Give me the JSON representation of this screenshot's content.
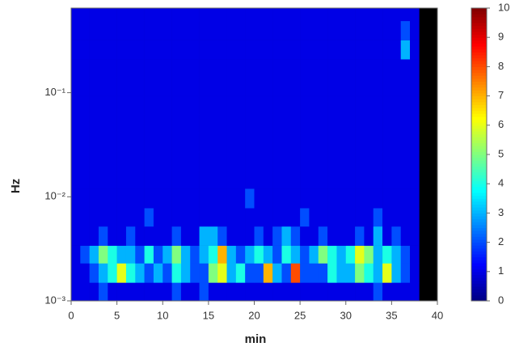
{
  "chart_data": {
    "type": "heatmap",
    "x_label": "min",
    "y_label": "Hz",
    "x_bins": [
      0,
      1,
      2,
      3,
      4,
      5,
      6,
      7,
      8,
      9,
      10,
      11,
      12,
      13,
      14,
      15,
      16,
      17,
      18,
      19,
      20,
      21,
      22,
      23,
      24,
      25,
      26,
      27,
      28,
      29,
      30,
      31,
      32,
      33,
      34,
      35,
      36,
      37,
      38
    ],
    "y_bins": [
      0.001,
      0.0015,
      0.0023,
      0.0034,
      0.0052,
      0.0078,
      0.012,
      0.018,
      0.027,
      0.041,
      0.062,
      0.093,
      0.14,
      0.21,
      0.32,
      0.49,
      0.65
    ],
    "values": [
      [
        1,
        1,
        1,
        2,
        1,
        1,
        1,
        1,
        1,
        1,
        1,
        2,
        1,
        1,
        2,
        1,
        1,
        1,
        1,
        1,
        1,
        1,
        1,
        1,
        1,
        1,
        1,
        1,
        1,
        1,
        1,
        1,
        1,
        2,
        1,
        1,
        1,
        1
      ],
      [
        1,
        1,
        2,
        3,
        4,
        6,
        4,
        3,
        2,
        3,
        2,
        4,
        3,
        2,
        2,
        5,
        6,
        3,
        4,
        2,
        2,
        7,
        3,
        2,
        8,
        2,
        2,
        2,
        4,
        3,
        3,
        5,
        4,
        3,
        6,
        3,
        2,
        1
      ],
      [
        1,
        2,
        3,
        5,
        4,
        3,
        3,
        2,
        4,
        2,
        3,
        5,
        3,
        2,
        3,
        4,
        7,
        3,
        2,
        3,
        4,
        3,
        2,
        4,
        3,
        2,
        3,
        5,
        4,
        3,
        4,
        6,
        5,
        3,
        4,
        3,
        2,
        1
      ],
      [
        1,
        1,
        1,
        2,
        1,
        1,
        2,
        1,
        1,
        1,
        1,
        2,
        1,
        1,
        3,
        3,
        2,
        1,
        1,
        1,
        2,
        1,
        2,
        3,
        2,
        1,
        1,
        2,
        1,
        1,
        1,
        2,
        1,
        3,
        1,
        2,
        1,
        1
      ],
      [
        1,
        1,
        1,
        1,
        1,
        1,
        1,
        1,
        2,
        1,
        1,
        1,
        1,
        1,
        1,
        1,
        1,
        1,
        1,
        1,
        1,
        1,
        1,
        1,
        1,
        2,
        1,
        1,
        1,
        1,
        1,
        1,
        1,
        2,
        1,
        1,
        1,
        1
      ],
      [
        1,
        1,
        1,
        1,
        1,
        1,
        1,
        1,
        1,
        1,
        1,
        1,
        1,
        1,
        1,
        1,
        1,
        1,
        1,
        2,
        1,
        1,
        1,
        1,
        1,
        1,
        1,
        1,
        1,
        1,
        1,
        1,
        1,
        1,
        1,
        1,
        1,
        1
      ],
      [
        1,
        1,
        1,
        1,
        1,
        1,
        1,
        1,
        1,
        1,
        1,
        1,
        1,
        1,
        1,
        1,
        1,
        1,
        1,
        1,
        1,
        1,
        1,
        1,
        1,
        1,
        1,
        1,
        1,
        1,
        1,
        1,
        1,
        1,
        1,
        1,
        1,
        1
      ],
      [
        1,
        1,
        1,
        1,
        1,
        1,
        1,
        1,
        1,
        1,
        1,
        1,
        1,
        1,
        1,
        1,
        1,
        1,
        1,
        1,
        1,
        1,
        1,
        1,
        1,
        1,
        1,
        1,
        1,
        1,
        1,
        1,
        1,
        1,
        1,
        1,
        1,
        1
      ],
      [
        1,
        1,
        1,
        1,
        1,
        1,
        1,
        1,
        1,
        1,
        1,
        1,
        1,
        1,
        1,
        1,
        1,
        1,
        1,
        1,
        1,
        1,
        1,
        1,
        1,
        1,
        1,
        1,
        1,
        1,
        1,
        1,
        1,
        1,
        1,
        1,
        1,
        1
      ],
      [
        1,
        1,
        1,
        1,
        1,
        1,
        1,
        1,
        1,
        1,
        1,
        1,
        1,
        1,
        1,
        1,
        1,
        1,
        1,
        1,
        1,
        1,
        1,
        1,
        1,
        1,
        1,
        1,
        1,
        1,
        1,
        1,
        1,
        1,
        1,
        1,
        1,
        1
      ],
      [
        1,
        1,
        1,
        1,
        1,
        1,
        1,
        1,
        1,
        1,
        1,
        1,
        1,
        1,
        1,
        1,
        1,
        1,
        1,
        1,
        1,
        1,
        1,
        1,
        1,
        1,
        1,
        1,
        1,
        1,
        1,
        1,
        1,
        1,
        1,
        1,
        1,
        1
      ],
      [
        1,
        1,
        1,
        1,
        1,
        1,
        1,
        1,
        1,
        1,
        1,
        1,
        1,
        1,
        1,
        1,
        1,
        1,
        1,
        1,
        1,
        1,
        1,
        1,
        1,
        1,
        1,
        1,
        1,
        1,
        1,
        1,
        1,
        1,
        1,
        1,
        1,
        1
      ],
      [
        1,
        1,
        1,
        1,
        1,
        1,
        1,
        1,
        1,
        1,
        1,
        1,
        1,
        1,
        1,
        1,
        1,
        1,
        1,
        1,
        1,
        1,
        1,
        1,
        1,
        1,
        1,
        1,
        1,
        1,
        1,
        1,
        1,
        1,
        1,
        1,
        1,
        1
      ],
      [
        1,
        1,
        1,
        1,
        1,
        1,
        1,
        1,
        1,
        1,
        1,
        1,
        1,
        1,
        1,
        1,
        1,
        1,
        1,
        1,
        1,
        1,
        1,
        1,
        1,
        1,
        1,
        1,
        1,
        1,
        1,
        1,
        1,
        1,
        1,
        1,
        3,
        1
      ],
      [
        1,
        1,
        1,
        1,
        1,
        1,
        1,
        1,
        1,
        1,
        1,
        1,
        1,
        1,
        1,
        1,
        1,
        1,
        1,
        1,
        1,
        1,
        1,
        1,
        1,
        1,
        1,
        1,
        1,
        1,
        1,
        1,
        1,
        1,
        1,
        1,
        2,
        1
      ],
      [
        1,
        1,
        1,
        1,
        1,
        1,
        1,
        1,
        1,
        1,
        1,
        1,
        1,
        1,
        1,
        1,
        1,
        1,
        1,
        1,
        1,
        1,
        1,
        1,
        1,
        1,
        1,
        1,
        1,
        1,
        1,
        1,
        1,
        1,
        1,
        1,
        1,
        1
      ]
    ],
    "xlim": [
      0,
      40
    ],
    "xticks": [
      0,
      5,
      10,
      15,
      20,
      25,
      30,
      35,
      40
    ],
    "ylim": [
      0.001,
      0.65
    ],
    "log_y": true,
    "yticks": [
      {
        "value": 0.001,
        "label": "10⁻³"
      },
      {
        "value": 0.01,
        "label": "10⁻²"
      },
      {
        "value": 0.1,
        "label": "10⁻¹"
      }
    ],
    "colormap": "jet",
    "colorbar": {
      "lim": [
        0,
        10
      ],
      "ticks": [
        0,
        1,
        2,
        3,
        4,
        5,
        6,
        7,
        8,
        9,
        10
      ]
    }
  }
}
